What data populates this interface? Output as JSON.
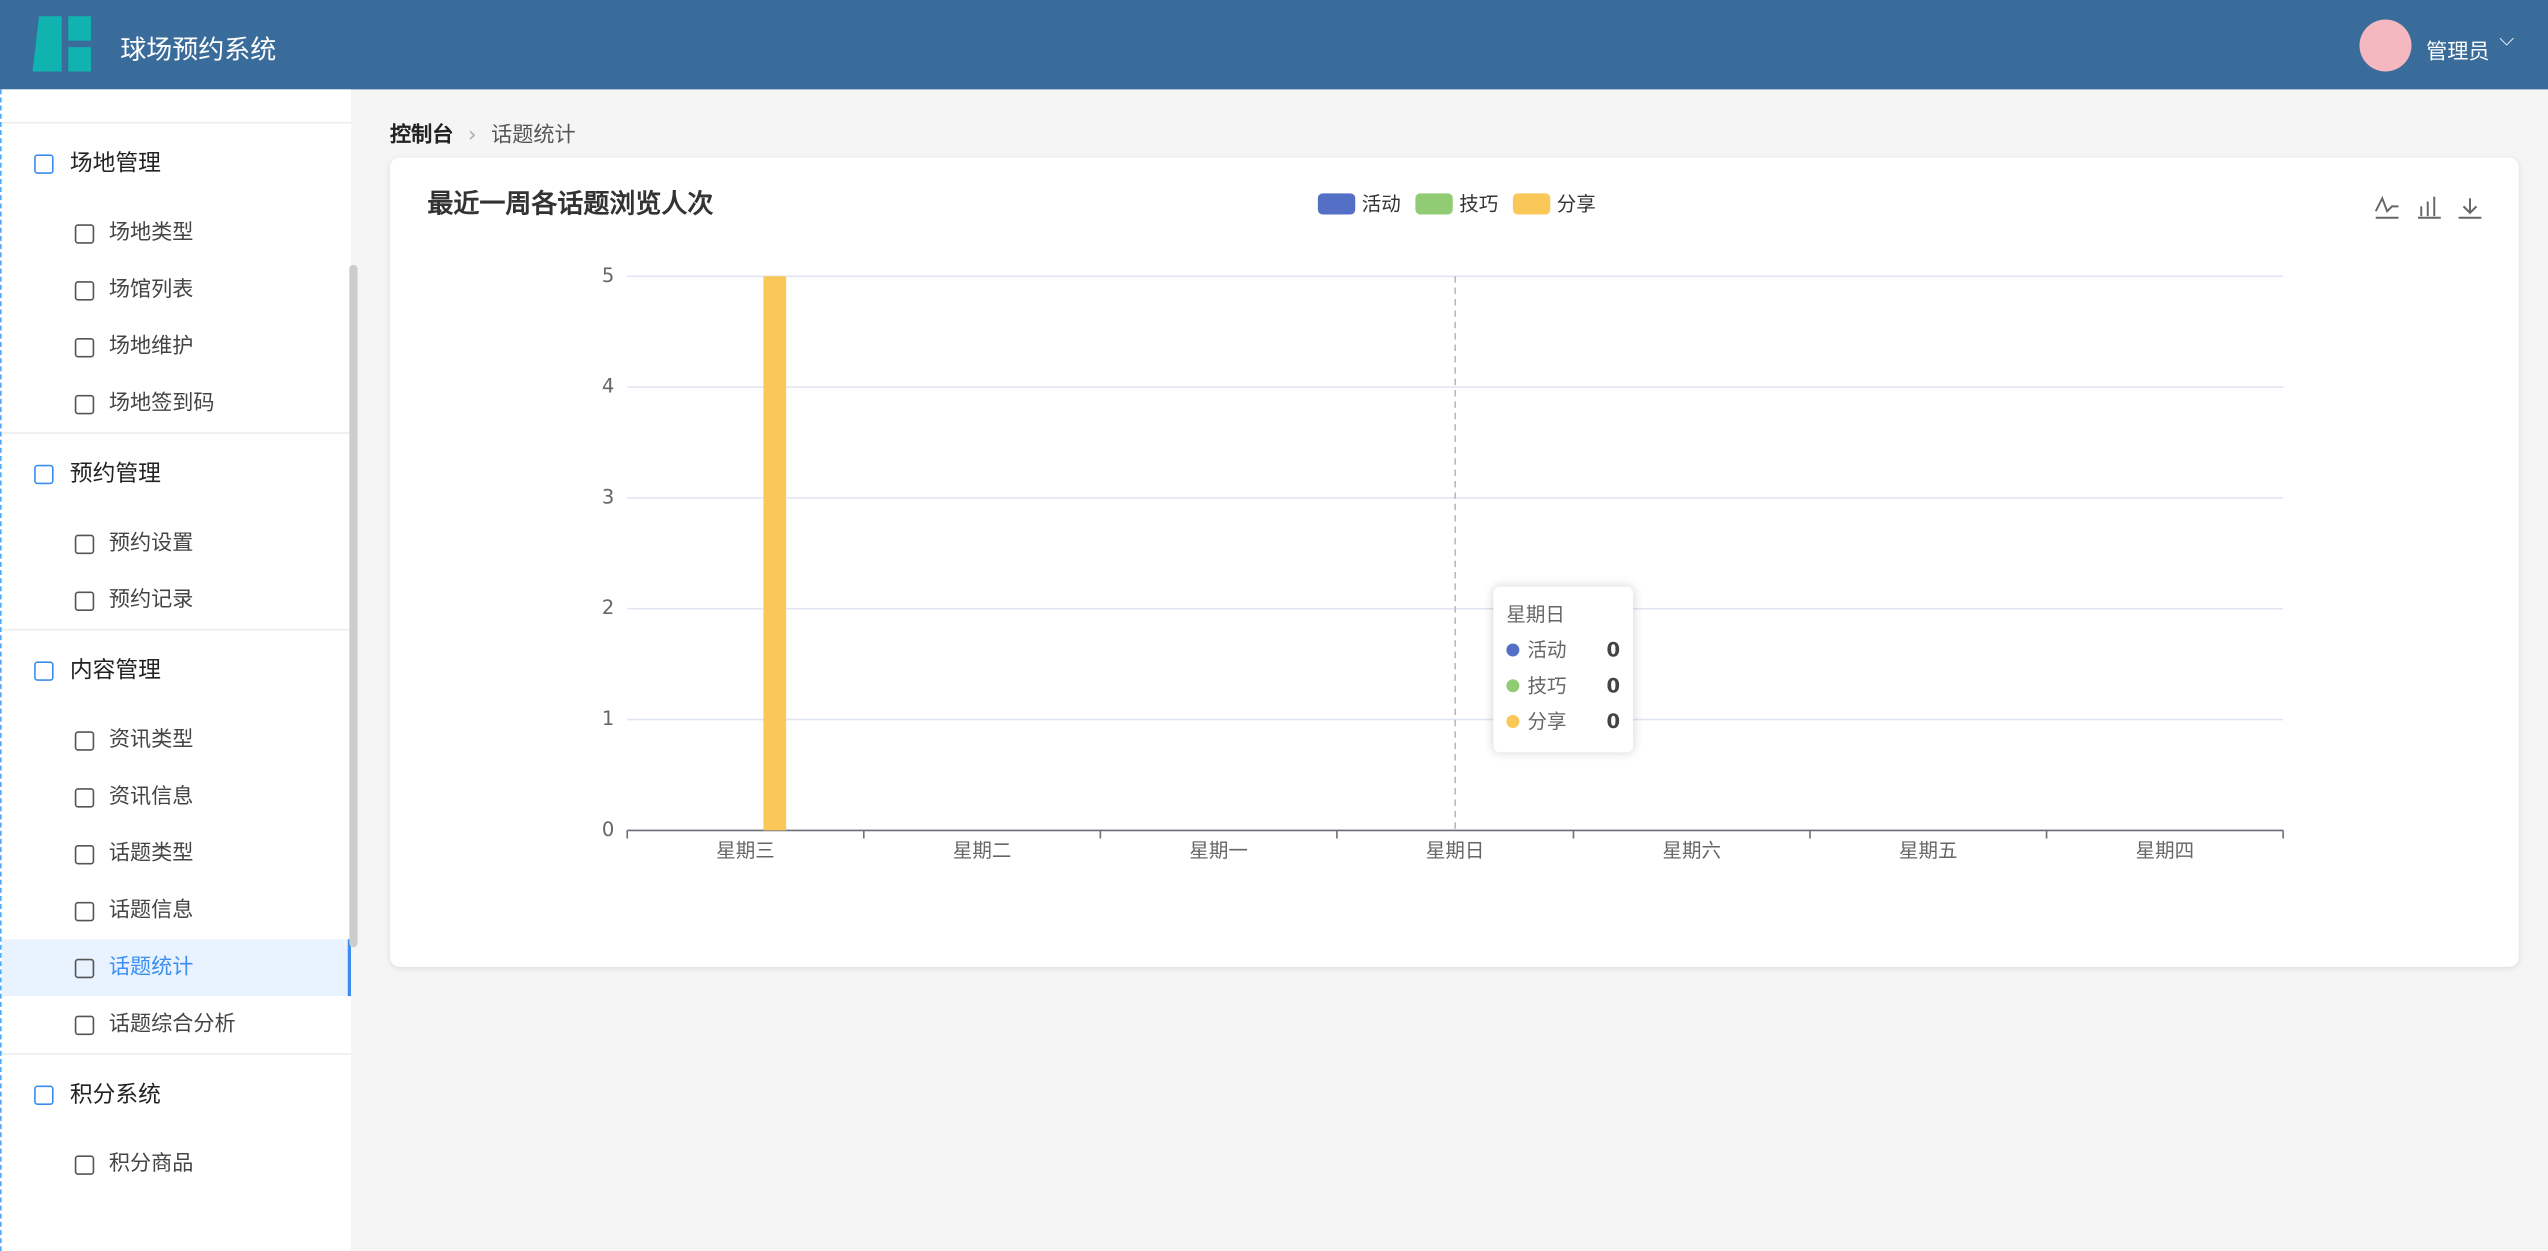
{
  "header": {
    "title": "球场预约系统",
    "user": "管理员"
  },
  "sidebar": [
    {
      "title": "场地管理",
      "items": [
        "场地类型",
        "场馆列表",
        "场地维护",
        "场地签到码"
      ]
    },
    {
      "title": "预约管理",
      "items": [
        "预约设置",
        "预约记录"
      ]
    },
    {
      "title": "内容管理",
      "items": [
        "资讯类型",
        "资讯信息",
        "话题类型",
        "话题信息",
        "话题统计",
        "话题综合分析"
      ]
    },
    {
      "title": "积分系统",
      "items": [
        "积分商品"
      ]
    }
  ],
  "breadcrumb": [
    "控制台",
    "话题统计"
  ],
  "chart_data": {
    "type": "bar",
    "title": "最近一周各话题浏览人次",
    "categories": [
      "星期三",
      "星期二",
      "星期一",
      "星期日",
      "星期六",
      "星期五",
      "星期四"
    ],
    "series": [
      {
        "name": "活动",
        "color": "#5470c6",
        "values": [
          0,
          0,
          0,
          0,
          0,
          0,
          0
        ]
      },
      {
        "name": "技巧",
        "color": "#91cc75",
        "values": [
          0,
          0,
          0,
          0,
          0,
          0,
          0
        ]
      },
      {
        "name": "分享",
        "color": "#fac858",
        "values": [
          5,
          0,
          0,
          0,
          0,
          0,
          0
        ]
      }
    ],
    "ylim": [
      0,
      5
    ],
    "yticks": [
      0,
      1,
      2,
      3,
      4,
      5
    ],
    "grid": true,
    "tooltip_category": 3
  }
}
